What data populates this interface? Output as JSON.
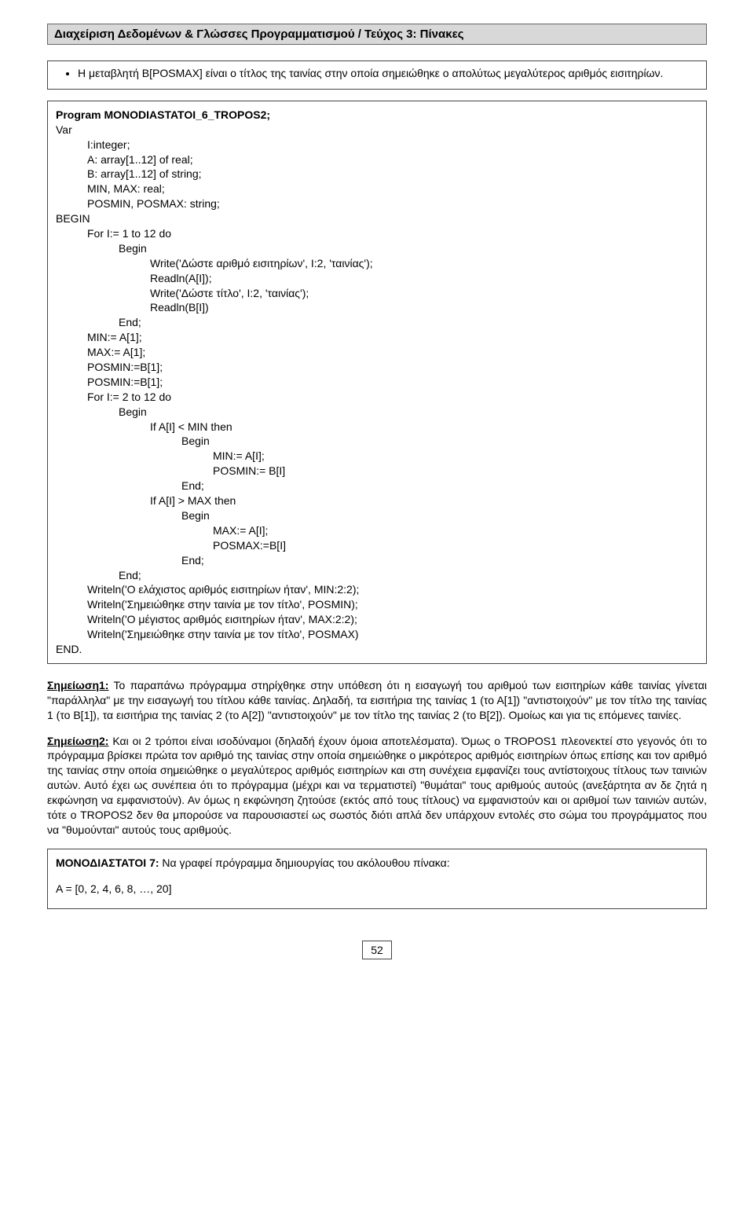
{
  "header_title": "Διαχείριση Δεδομένων & Γλώσσες Προγραμματισμού  /  Τεύχος 3: Πίνακες",
  "bullet_text": "H μεταβλητή B[POSMAX] είναι ο τίτλος της ταινίας στην οποία σημειώθηκε ο απολύτως μεγαλύτερος αριθμός εισιτηρίων.",
  "code": {
    "lines": [
      {
        "t": "Program MONODIASTATOI_6_TROPOS2;",
        "b": true,
        "ind": 0
      },
      {
        "t": "Var",
        "ind": 0
      },
      {
        "t": "I:integer;",
        "ind": 1
      },
      {
        "t": "A: array[1..12] of real;",
        "ind": 1
      },
      {
        "t": "B: array[1..12] of string;",
        "ind": 1
      },
      {
        "t": "MIN, MAX: real;",
        "ind": 1
      },
      {
        "t": "POSMIN, POSMAX: string;",
        "ind": 1
      },
      {
        "t": "BEGIN",
        "ind": 0
      },
      {
        "t": "For I:= 1 to 12 do",
        "ind": 1
      },
      {
        "t": "Begin",
        "ind": 2
      },
      {
        "t": "Write('Δώστε αριθμό εισιτηρίων', I:2, 'ταινίας');",
        "ind": 3
      },
      {
        "t": "Readln(A[I]);",
        "ind": 3
      },
      {
        "t": "Write('Δώστε τίτλο', I:2, 'ταινίας');",
        "ind": 3
      },
      {
        "t": "Readln(B[I])",
        "ind": 3
      },
      {
        "t": "End;",
        "ind": 2
      },
      {
        "t": "MIN:= A[1];",
        "ind": 1
      },
      {
        "t": "MAX:= A[1];",
        "ind": 1
      },
      {
        "t": "POSMIN:=B[1];",
        "ind": 1
      },
      {
        "t": "POSMIN:=B[1];",
        "ind": 1
      },
      {
        "t": "For I:= 2 to 12 do",
        "ind": 1
      },
      {
        "t": "Begin",
        "ind": 2
      },
      {
        "t": "If A[I] < MIN then",
        "ind": 3
      },
      {
        "t": "Begin",
        "ind": 4
      },
      {
        "t": "MIN:= A[I];",
        "ind": 5
      },
      {
        "t": "POSMIN:= B[I]",
        "ind": 5
      },
      {
        "t": "End;",
        "ind": 4
      },
      {
        "t": "If A[I] > MAX then",
        "ind": 3
      },
      {
        "t": "Begin",
        "ind": 4
      },
      {
        "t": "MAX:= A[I];",
        "ind": 5
      },
      {
        "t": "POSMAX:=B[I]",
        "ind": 5
      },
      {
        "t": "End;",
        "ind": 4
      },
      {
        "t": "End;",
        "ind": 2
      },
      {
        "t": "Writeln('O ελάχιστος αριθμός εισιτηρίων ήταν', MIN:2:2);",
        "ind": 1
      },
      {
        "t": "Writeln('Σημειώθηκε στην ταινία με τον τίτλο', POSMIN);",
        "ind": 1
      },
      {
        "t": "Writeln('O μέγιστος αριθμός εισιτηρίων ήταν', ΜΑΧ:2:2);",
        "ind": 1
      },
      {
        "t": "Writeln('Σημειώθηκε στην ταινία με τον τίτλο', POSMAX)",
        "ind": 1
      },
      {
        "t": "END.",
        "ind": 0
      }
    ]
  },
  "note1_label": "Σημείωση1:",
  "note1_text": " Το παραπάνω πρόγραμμα στηρίχθηκε στην υπόθεση ότι η εισαγωγή του αριθμού των εισιτηρίων κάθε ταινίας γίνεται \"παράλληλα\" με την εισαγωγή του τίτλου κάθε ταινίας. Δηλαδή, τα εισιτήρια της ταινίας 1 (το Α[1]) \"αντιστοιχούν\" με τον τίτλο της ταινίας 1 (το Β[1]), τα εισιτήρια της ταινίας 2 (το Α[2]) \"αντιστοιχούν\" με τον τίτλο της ταινίας 2 (το Β[2]). Ομοίως και για τις επόμενες ταινίες.",
  "note2_label": "Σημείωση2:",
  "note2_text": " Και οι 2 τρόποι είναι ισοδύναμοι (δηλαδή έχουν όμοια αποτελέσματα). Όμως ο TROPOS1 πλεονεκτεί στο γεγονός ότι το πρόγραμμα βρίσκει πρώτα τον αριθμό της ταινίας στην οποία σημειώθηκε ο μικρότερος αριθμός εισιτηρίων όπως επίσης και τον αριθμό της ταινίας στην οποία σημειώθηκε ο μεγαλύτερος αριθμός εισιτηρίων και στη συνέχεια εμφανίζει τους αντίστοιχους τίτλους των ταινιών αυτών. Αυτό έχει ως συνέπεια ότι το πρόγραμμα (μέχρι και να τερματιστεί) \"θυμάται\" τους αριθμούς αυτούς (ανεξάρτητα αν δε ζητά η εκφώνηση να εμφανιστούν). Αν όμως η εκφώνηση ζητούσε (εκτός από τους τίτλους) να εμφανιστούν και οι αριθμοί των ταινιών αυτών, τότε ο TROPOS2 δεν θα μπορούσε να παρουσιαστεί ως σωστός διότι απλά δεν υπάρχουν εντολές στο σώμα του προγράμματος που να \"θυμούνται\" αυτούς τους αριθμούς.",
  "bottom_title": "ΜΟΝΟΔΙΑΣΤΑΤΟΙ 7:",
  "bottom_text": " Να γραφεί πρόγραμμα δημιουργίας του ακόλουθου πίνακα:",
  "bottom_array": "A = [0, 2, 4, 6, 8, …, 20]",
  "page_number": "52"
}
